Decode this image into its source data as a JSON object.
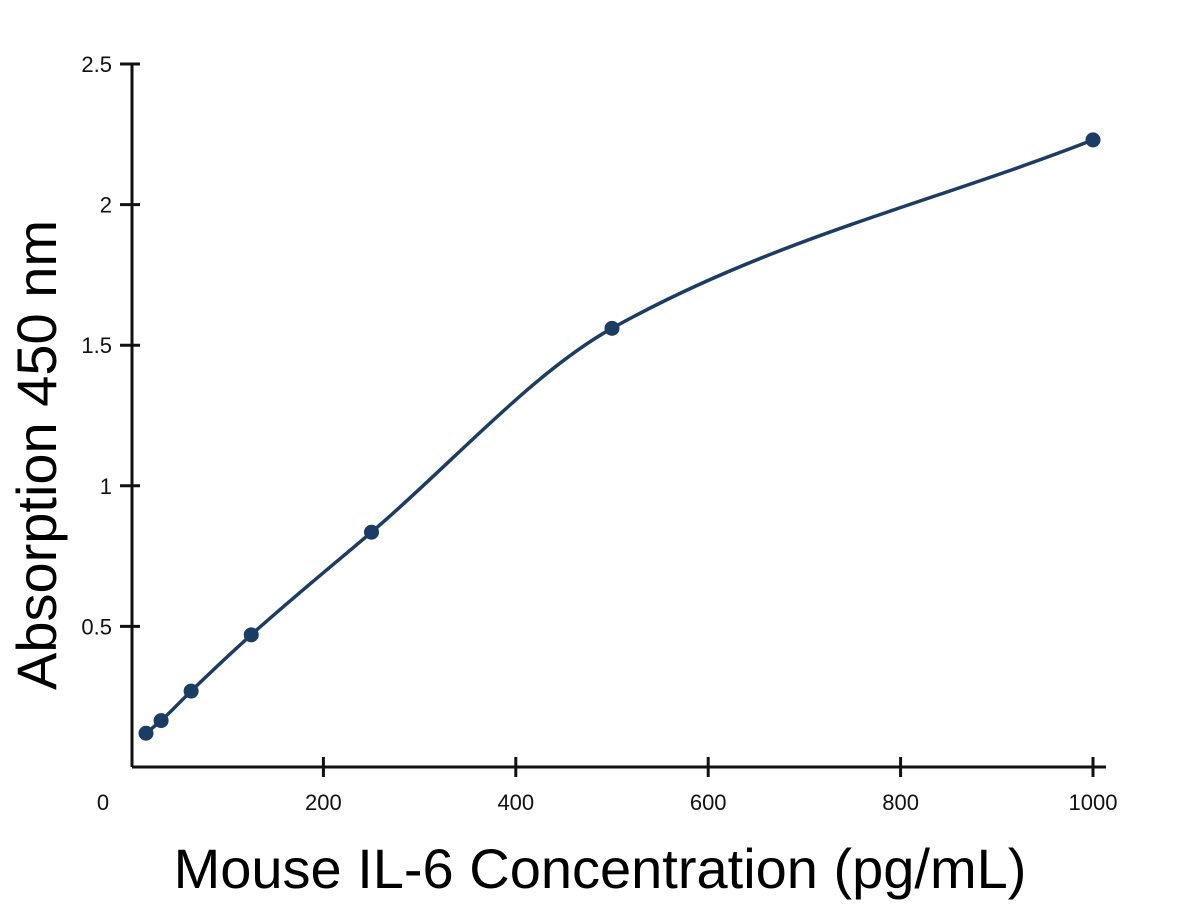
{
  "chart_data": {
    "type": "scatter",
    "title": "",
    "xlabel": "Mouse IL-6 Concentration (pg/mL)",
    "ylabel": "Absorption 450 nm",
    "xlim": [
      0,
      1000
    ],
    "ylim": [
      0,
      2.5
    ],
    "xticks": [
      0,
      200,
      400,
      600,
      800,
      1000
    ],
    "yticks": [
      0.5,
      1,
      1.5,
      2,
      2.5
    ],
    "xtick_labels": [
      "0",
      "200",
      "400",
      "600",
      "800",
      "1000"
    ],
    "ytick_labels": [
      "0.5",
      "1",
      "1.5",
      "2",
      "2.5"
    ],
    "grid": false,
    "legend": "none",
    "series": [
      {
        "x": [
          15.6,
          31.3,
          62.5,
          125,
          250,
          500,
          1000
        ],
        "y": [
          0.12,
          0.165,
          0.27,
          0.47,
          0.835,
          1.56,
          2.23
        ],
        "fit_curve": true
      }
    ],
    "colors": {
      "series": "#1c3d63",
      "axis": "#111111"
    }
  }
}
